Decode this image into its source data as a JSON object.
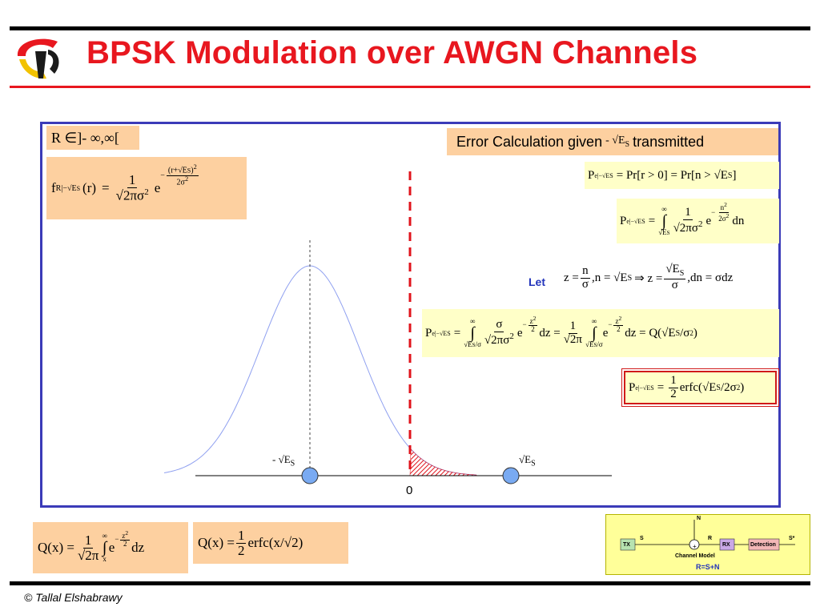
{
  "slide": {
    "title": "BPSK Modulation over AWGN Channels",
    "footer": "© Tallal Elshabrawy",
    "colors": {
      "title": "#e8171f",
      "frame": "#3b3bb8",
      "formula_bg": "#fdd0a0",
      "result_bg": "#ffffc8",
      "curve": "#8fa0f0",
      "threshold": "#e0141c",
      "point_fill": "#79aaf2"
    }
  },
  "range_label": {
    "R": "R",
    "in": "∈",
    "set": "]- ∞,∞["
  },
  "pdf_formula": {
    "f": "f",
    "f_sub": "R|−√E",
    "f_sub2": "S",
    "arg": "(r)",
    "eq": "=",
    "num": "1",
    "den": "√2πσ",
    "den_sup": "2",
    "e": "e",
    "exp_num": "(r+√E",
    "exp_num_sub": "S",
    "exp_num_tail": ")",
    "exp_num_sup": "2",
    "exp_den": "2σ",
    "exp_den_sup": "2",
    "exp_sign": "−"
  },
  "error_header": {
    "text_before": "Error Calculation given",
    "sqrt_es": "- √E",
    "sqrt_es_sub": "S",
    "text_after": "transmitted"
  },
  "eq1": {
    "P": "P",
    "P_sub": "e|−√E",
    "P_sub2": "S",
    "rhs": "= Pr[r > 0] = Pr[n > √E",
    "rhs_sub": "S",
    "rhs_tail": "]"
  },
  "eq2": {
    "P": "P",
    "P_sub": "e|−√E",
    "P_sub2": "S",
    "eq": "=",
    "int_top": "∞",
    "int_bot": "√E",
    "int_bot_sub": "S",
    "int": "∫",
    "num": "1",
    "den": "√2πσ",
    "den_sup": "2",
    "e": "e",
    "exp_sign": "−",
    "exp_num": "n",
    "exp_num_sup": "2",
    "exp_den": "2σ",
    "exp_den_sup": "2",
    "tail": "dn"
  },
  "let": {
    "label": "Let",
    "z_eq": "z =",
    "n": "n",
    "sigma": "σ",
    "mid": ",n = √E",
    "mid_sub": "S",
    "implies": "⇒ z =",
    "es": "√E",
    "es_sub": "S",
    "tail": ",dn = σdz"
  },
  "eq3": {
    "P": "P",
    "P_sub": "e|−√E",
    "P_sub2": "S",
    "eq": "=",
    "int": "∫",
    "int_top": "∞",
    "int_bot": "√E",
    "int_bot_sub": "S",
    "int_bot_tail": "/σ",
    "num": "σ",
    "den": "√2πσ",
    "den_sup": "2",
    "e": "e",
    "exp_sign": "−",
    "exp_num": "z",
    "exp_num_sup": "2",
    "exp_den": "2",
    "mid": "dz =",
    "num2": "1",
    "den2": "√2π",
    "tail": "dz = Q(√E",
    "tail_sub": "S",
    "tail_end": "/σ",
    "tail_end_sup": "2",
    "tail_close": ")"
  },
  "eq4": {
    "P": "P",
    "P_sub": "e|−√E",
    "P_sub2": "S",
    "eq": "=",
    "num": "1",
    "den": "2",
    "erfc": "erfc(√E",
    "erfc_sub": "S",
    "erfc_tail": "/2σ",
    "erfc_sup": "2",
    "erfc_close": ")"
  },
  "plot": {
    "neg_label": "- √E",
    "neg_sub": "S",
    "pos_label": "√E",
    "pos_sub": "S",
    "zero_label": "0"
  },
  "q_def": {
    "Q": "Q(x) =",
    "num": "1",
    "den": "√2π",
    "int": "∫",
    "int_top": "∞",
    "int_bot": "x",
    "e": "e",
    "exp_sign": "−",
    "exp_num": "z",
    "exp_num_sup": "2",
    "exp_den": "2",
    "tail": "dz"
  },
  "q_erfc": {
    "Q": "Q(x) =",
    "num": "1",
    "den": "2",
    "erfc": "erfc(x/√2)"
  },
  "channel_diagram": {
    "tx": "TX",
    "rx": "RX",
    "detection": "Detection",
    "s": "S",
    "r": "R",
    "n": "N",
    "s_hat": "S*",
    "model": "Channel Model",
    "relation": "R=S+N"
  }
}
